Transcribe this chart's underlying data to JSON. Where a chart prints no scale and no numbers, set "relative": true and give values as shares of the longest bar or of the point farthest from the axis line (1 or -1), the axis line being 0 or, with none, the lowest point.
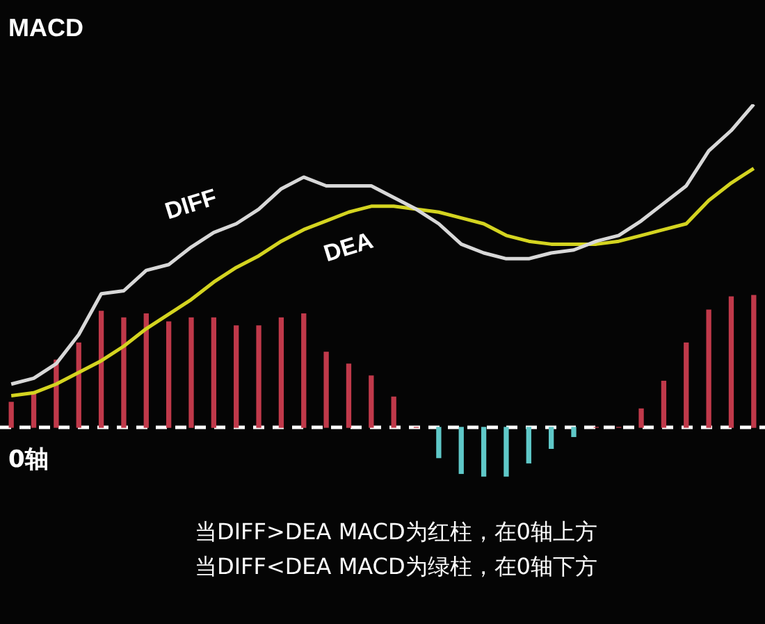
{
  "chart_data": [
    {
      "type": "line",
      "title": "MACD",
      "relative": true,
      "legend": false,
      "categories": [
        null,
        null,
        null,
        null,
        null,
        null,
        null,
        null,
        null,
        null,
        null,
        null,
        null,
        null,
        null,
        null,
        null,
        null,
        null,
        null,
        null,
        null,
        null,
        null,
        null,
        null,
        null,
        null,
        null,
        null,
        null,
        null,
        null,
        null
      ],
      "series": [
        {
          "name": "DIFF",
          "color": "#d8d8d8",
          "values": [
            0.04,
            0.06,
            0.11,
            0.21,
            0.35,
            0.36,
            0.43,
            0.45,
            0.51,
            0.56,
            0.59,
            0.64,
            0.71,
            0.75,
            0.72,
            0.72,
            0.72,
            0.68,
            0.64,
            0.59,
            0.52,
            0.49,
            0.47,
            0.47,
            0.49,
            0.5,
            0.53,
            0.55,
            0.6,
            0.66,
            0.72,
            0.84,
            0.91,
            1
          ]
        },
        {
          "name": "DEA",
          "color": "#d4d420",
          "values": [
            0,
            0.01,
            0.04,
            0.08,
            0.12,
            0.17,
            0.23,
            0.28,
            0.33,
            0.39,
            0.44,
            0.48,
            0.53,
            0.57,
            0.6,
            0.63,
            0.65,
            0.65,
            0.64,
            0.63,
            0.61,
            0.59,
            0.55,
            0.53,
            0.52,
            0.52,
            0.52,
            0.53,
            0.55,
            0.57,
            0.59,
            0.67,
            0.73,
            0.78
          ]
        }
      ]
    },
    {
      "type": "bar",
      "relative": true,
      "legend": false,
      "categories": [
        null,
        null,
        null,
        null,
        null,
        null,
        null,
        null,
        null,
        null,
        null,
        null,
        null,
        null,
        null,
        null,
        null,
        null,
        null,
        null,
        null,
        null,
        null,
        null,
        null,
        null,
        null,
        null,
        null,
        null,
        null,
        null,
        null,
        null
      ],
      "colors": [
        "#c0394a",
        "#c0394a",
        "#c0394a",
        "#c0394a",
        "#c0394a",
        "#c0394a",
        "#c0394a",
        "#c0394a",
        "#c0394a",
        "#c0394a",
        "#c0394a",
        "#c0394a",
        "#c0394a",
        "#c0394a",
        "#c0394a",
        "#c0394a",
        "#c0394a",
        "#c0394a",
        "#c0394a",
        "#5fc8c8",
        "#5fc8c8",
        "#5fc8c8",
        "#5fc8c8",
        "#5fc8c8",
        "#5fc8c8",
        "#5fc8c8",
        "#c0394a",
        "#c0394a",
        "#c0394a",
        "#c0394a",
        "#c0394a",
        "#c0394a",
        "#c0394a",
        "#c0394a"
      ],
      "values": [
        0.19,
        0.27,
        0.51,
        0.64,
        0.88,
        0.83,
        0.86,
        0.8,
        0.83,
        0.83,
        0.77,
        0.77,
        0.83,
        0.86,
        0.57,
        0.48,
        0.39,
        0.23,
        0,
        -0.23,
        -0.35,
        -0.37,
        -0.37,
        -0.27,
        -0.16,
        -0.07,
        0,
        0,
        0.14,
        0.35,
        0.64,
        0.89,
        0.99,
        1
      ],
      "ref_lines": [
        {
          "axis": "y",
          "value": 0,
          "label": "0轴",
          "color": "#ffffff",
          "line_style": "dashed"
        }
      ],
      "annotations": [
        "当DIFF>DEA MACD为红柱，在0轴上方",
        "当DIFF<DEA MACD为绿柱，在0轴下方"
      ]
    }
  ]
}
